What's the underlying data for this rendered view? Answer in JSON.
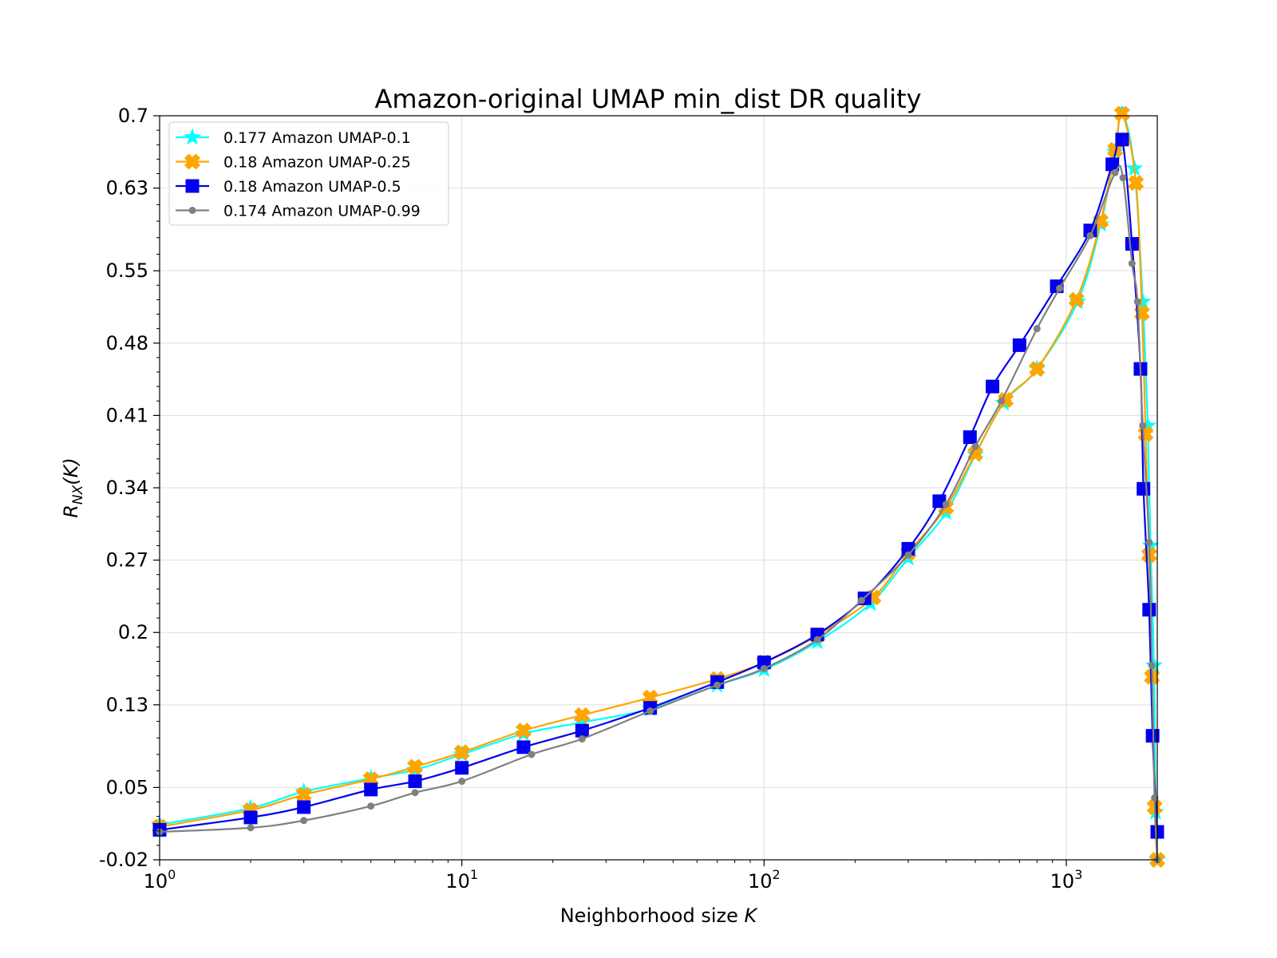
{
  "chart_data": {
    "type": "line",
    "title": "Amazon-original UMAP min_dist DR quality",
    "xlabel_main": "Neighborhood size ",
    "xlabel_var": "K",
    "ylabel_main": "R",
    "ylabel_sub": "NX",
    "ylabel_tail": "(K)",
    "x_scale": "log",
    "xlim": [
      1,
      2000
    ],
    "ylim": [
      -0.02,
      0.7
    ],
    "yticks": [
      -0.02,
      0.05,
      0.13,
      0.2,
      0.27,
      0.34,
      0.41,
      0.48,
      0.55,
      0.63,
      0.7
    ],
    "ytick_labels": [
      "-0.02",
      "0.05",
      "0.13",
      "0.2",
      "0.27",
      "0.34",
      "0.41",
      "0.48",
      "0.55",
      "0.63",
      "0.7"
    ],
    "xticks": [
      {
        "value": 1,
        "base": "10",
        "exp": "0"
      },
      {
        "value": 10,
        "base": "10",
        "exp": "1"
      },
      {
        "value": 100,
        "base": "10",
        "exp": "2"
      },
      {
        "value": 1000,
        "base": "10",
        "exp": "3"
      }
    ],
    "grid": true,
    "legend_position": "top-left",
    "series": [
      {
        "name": "0.177 Amazon UMAP-0.1",
        "color": "#00FFFF",
        "marker": "star",
        "x": [
          1,
          2,
          3,
          5,
          7,
          10,
          16,
          25,
          42,
          70,
          100,
          150,
          225,
          300,
          400,
          500,
          620,
          800,
          1090,
          1300,
          1450,
          1530,
          1680,
          1790,
          1860,
          1900,
          1950,
          1975,
          2000
        ],
        "y": [
          0.014,
          0.03,
          0.046,
          0.059,
          0.067,
          0.082,
          0.102,
          0.113,
          0.126,
          0.149,
          0.164,
          0.191,
          0.228,
          0.272,
          0.316,
          0.372,
          0.422,
          0.455,
          0.52,
          0.595,
          0.665,
          0.703,
          0.649,
          0.52,
          0.4,
          0.284,
          0.168,
          0.026,
          -0.02
        ]
      },
      {
        "name": "0.18 Amazon UMAP-0.25",
        "color": "#FFA500",
        "marker": "x",
        "x": [
          1,
          2,
          3,
          5,
          7,
          10,
          16,
          25,
          42,
          70,
          100,
          150,
          230,
          300,
          400,
          500,
          630,
          800,
          1080,
          1300,
          1450,
          1530,
          1700,
          1780,
          1830,
          1880,
          1920,
          1960,
          2000
        ],
        "y": [
          0.012,
          0.028,
          0.043,
          0.058,
          0.07,
          0.084,
          0.105,
          0.12,
          0.137,
          0.155,
          0.171,
          0.197,
          0.234,
          0.277,
          0.321,
          0.373,
          0.425,
          0.455,
          0.522,
          0.598,
          0.667,
          0.702,
          0.635,
          0.509,
          0.392,
          0.275,
          0.157,
          0.031,
          -0.02
        ]
      },
      {
        "name": "0.18 Amazon UMAP-0.5",
        "color": "#0000EE",
        "marker": "square",
        "x": [
          1,
          2,
          3,
          5,
          7,
          10,
          16,
          25,
          42,
          70,
          100,
          150,
          215,
          300,
          380,
          480,
          570,
          700,
          930,
          1200,
          1420,
          1530,
          1650,
          1760,
          1800,
          1880,
          1930,
          2000
        ],
        "y": [
          0.009,
          0.021,
          0.031,
          0.048,
          0.056,
          0.069,
          0.089,
          0.105,
          0.127,
          0.152,
          0.171,
          0.198,
          0.233,
          0.281,
          0.327,
          0.389,
          0.438,
          0.478,
          0.535,
          0.589,
          0.653,
          0.677,
          0.576,
          0.455,
          0.339,
          0.222,
          0.1,
          0.007
        ]
      },
      {
        "name": "0.174 Amazon UMAP-0.99",
        "color": "#808080",
        "marker": "dot",
        "x": [
          1,
          2,
          3,
          5,
          7,
          10,
          17,
          25,
          42,
          70,
          100,
          150,
          210,
          300,
          400,
          500,
          610,
          800,
          950,
          1200,
          1450,
          1540,
          1650,
          1720,
          1790,
          1880,
          1920,
          1960,
          2000
        ],
        "y": [
          0.007,
          0.011,
          0.018,
          0.032,
          0.045,
          0.056,
          0.082,
          0.097,
          0.124,
          0.149,
          0.165,
          0.193,
          0.231,
          0.275,
          0.324,
          0.38,
          0.424,
          0.494,
          0.533,
          0.584,
          0.645,
          0.64,
          0.557,
          0.52,
          0.4,
          0.287,
          0.168,
          0.04,
          -0.02
        ]
      }
    ]
  }
}
